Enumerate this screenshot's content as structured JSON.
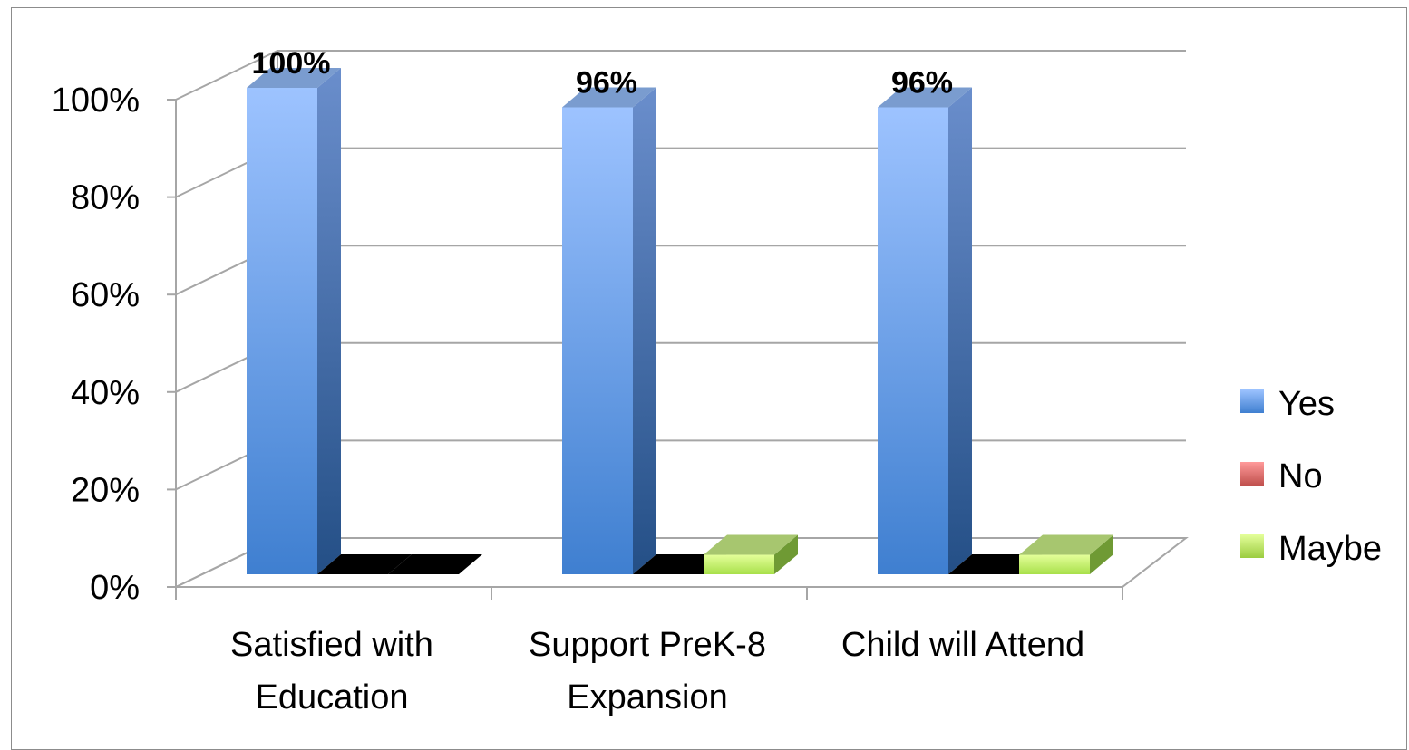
{
  "chart_data": {
    "type": "bar",
    "title": "",
    "xlabel": "",
    "ylabel": "",
    "categories": [
      [
        "Satisfied with",
        "Education"
      ],
      [
        "Support PreK-8",
        "Expansion"
      ],
      [
        "Child will Attend"
      ]
    ],
    "series": [
      {
        "name": "Yes",
        "values": [
          100,
          96,
          96
        ],
        "color": "#4f81bd",
        "data_labels": [
          "100%",
          "96%",
          "96%"
        ]
      },
      {
        "name": "No",
        "values": [
          0,
          0,
          0
        ],
        "color": "#c0504d"
      },
      {
        "name": "Maybe",
        "values": [
          0,
          4,
          4
        ],
        "color": "#9bbb59"
      }
    ],
    "ylim": [
      0,
      100
    ],
    "yticks": [
      0,
      20,
      40,
      60,
      80,
      100
    ],
    "ytick_labels": [
      "0%",
      "20%",
      "40%",
      "60%",
      "80%",
      "100%"
    ],
    "grid": true,
    "three_d": true,
    "legend_position": "right"
  }
}
